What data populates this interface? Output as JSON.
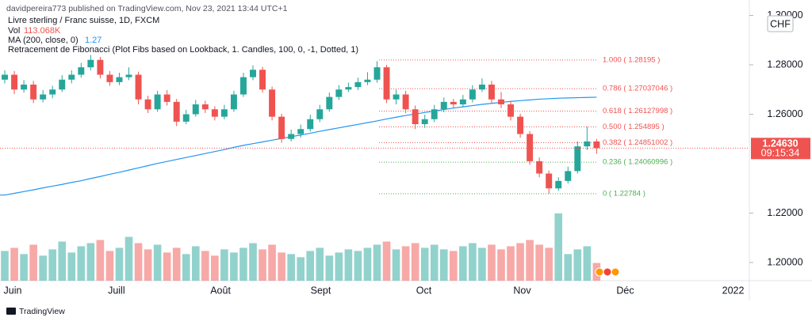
{
  "chart_data": {
    "type": "candlestick",
    "header": "davidpereira773 published on TradingView.com, Nov 23, 2021 13:44 UTC+1",
    "title": "Livre sterling / Franc suisse, 1D, FXCM",
    "currency": "CHF",
    "footer": "TradingView",
    "up_color": "#26a69a",
    "down_color": "#ef5350",
    "xlim": [
      -0.5,
      78
    ],
    "xticks": [
      {
        "value": 0.75,
        "label": "Juin"
      },
      {
        "value": 11.7,
        "label": "Juill"
      },
      {
        "value": 22.6,
        "label": "Août"
      },
      {
        "value": 33.1,
        "label": "Sept"
      },
      {
        "value": 43.9,
        "label": "Oct"
      },
      {
        "value": 54.2,
        "label": "Nov"
      },
      {
        "value": 65,
        "label": "Déc"
      },
      {
        "value": 76.3,
        "label": "2022"
      }
    ],
    "ylim": [
      1.19264,
      1.30624
    ],
    "yticks": [
      {
        "value": 1.3,
        "label": "1.30000"
      },
      {
        "value": 1.28,
        "label": "1.28000"
      },
      {
        "value": 1.26,
        "label": "1.26000"
      },
      {
        "value": 1.22,
        "label": "1.22000"
      },
      {
        "value": 1.2,
        "label": "1.20000"
      }
    ],
    "candles": {
      "open": [
        1.274,
        1.276,
        1.27,
        1.272,
        1.266,
        1.268,
        1.27,
        1.274,
        1.276,
        1.279,
        1.282,
        1.276,
        1.273,
        1.275,
        1.276,
        1.266,
        1.262,
        1.268,
        1.265,
        1.257,
        1.26,
        1.264,
        1.262,
        1.259,
        1.262,
        1.268,
        1.275,
        1.278,
        1.27,
        1.259,
        1.25,
        1.252,
        1.254,
        1.258,
        1.262,
        1.267,
        1.27,
        1.271,
        1.273,
        1.274,
        1.279,
        1.266,
        1.268,
        1.262,
        1.256,
        1.258,
        1.262,
        1.265,
        1.264,
        1.266,
        1.27,
        1.272,
        1.266,
        1.264,
        1.259,
        1.252,
        1.241,
        1.236,
        1.23,
        1.233,
        1.237,
        1.247,
        1.249
      ],
      "high": [
        1.2778,
        1.2775,
        1.2738,
        1.2735,
        1.2698,
        1.2715,
        1.2758,
        1.2778,
        1.2808,
        1.284,
        1.2832,
        1.2775,
        1.2768,
        1.279,
        1.2772,
        1.2675,
        1.2695,
        1.2698,
        1.2662,
        1.2618,
        1.2658,
        1.2655,
        1.2632,
        1.2638,
        1.2695,
        1.2768,
        1.2798,
        1.2792,
        1.2712,
        1.2602,
        1.2538,
        1.2558,
        1.2598,
        1.2638,
        1.2688,
        1.2718,
        1.2728,
        1.2748,
        1.277,
        1.2815,
        1.28,
        1.27,
        1.2695,
        1.2635,
        1.2598,
        1.2638,
        1.2668,
        1.2662,
        1.2678,
        1.2718,
        1.2745,
        1.2735,
        1.269,
        1.2652,
        1.2602,
        1.2532,
        1.2425,
        1.2372,
        1.2345,
        1.2388,
        1.249,
        1.255,
        1.25
      ],
      "low": [
        1.2725,
        1.2682,
        1.2688,
        1.2645,
        1.2648,
        1.2665,
        1.269,
        1.2725,
        1.2748,
        1.2778,
        1.2745,
        1.2715,
        1.2718,
        1.2738,
        1.264,
        1.2605,
        1.261,
        1.2635,
        1.2552,
        1.256,
        1.259,
        1.2605,
        1.2575,
        1.258,
        1.261,
        1.267,
        1.2738,
        1.2688,
        1.2575,
        1.2485,
        1.249,
        1.2505,
        1.253,
        1.2568,
        1.261,
        1.2658,
        1.269,
        1.2698,
        1.2718,
        1.2728,
        1.2645,
        1.264,
        1.2605,
        1.254,
        1.2545,
        1.2568,
        1.2608,
        1.2625,
        1.2628,
        1.2648,
        1.269,
        1.2645,
        1.2625,
        1.2575,
        1.2505,
        1.2395,
        1.2345,
        1.2278,
        1.229,
        1.232,
        1.236,
        1.2455,
        1.244
      ],
      "close": [
        1.276,
        1.27,
        1.272,
        1.266,
        1.268,
        1.27,
        1.274,
        1.276,
        1.279,
        1.282,
        1.276,
        1.273,
        1.275,
        1.276,
        1.266,
        1.262,
        1.268,
        1.265,
        1.257,
        1.26,
        1.264,
        1.262,
        1.259,
        1.262,
        1.268,
        1.275,
        1.278,
        1.27,
        1.259,
        1.25,
        1.252,
        1.254,
        1.258,
        1.262,
        1.267,
        1.27,
        1.271,
        1.273,
        1.274,
        1.279,
        1.266,
        1.268,
        1.262,
        1.256,
        1.258,
        1.262,
        1.265,
        1.264,
        1.266,
        1.27,
        1.272,
        1.266,
        1.264,
        1.259,
        1.252,
        1.241,
        1.236,
        1.23,
        1.233,
        1.237,
        1.247,
        1.249,
        1.2463
      ]
    },
    "last_price_label": "1.24630",
    "countdown": "09:15:34",
    "last_price_color": "#ef5350",
    "volume": {
      "name": "Vol",
      "last_label": "113.068K",
      "lim": [
        0,
        480000
      ],
      "values": [
        190000,
        210000,
        170000,
        230000,
        160000,
        200000,
        250000,
        180000,
        220000,
        240000,
        260000,
        190000,
        210000,
        280000,
        240000,
        200000,
        230000,
        180000,
        210000,
        170000,
        220000,
        190000,
        160000,
        200000,
        180000,
        210000,
        240000,
        200000,
        230000,
        180000,
        170000,
        150000,
        190000,
        210000,
        160000,
        180000,
        200000,
        190000,
        210000,
        230000,
        250000,
        200000,
        220000,
        240000,
        210000,
        230000,
        200000,
        190000,
        220000,
        240000,
        210000,
        230000,
        200000,
        220000,
        240000,
        260000,
        230000,
        210000,
        430000,
        170000,
        200000,
        220000,
        113068
      ]
    },
    "ma": {
      "name": "MA (200, close, 0)",
      "label": "1.27",
      "color": "#2196f3",
      "values": [
        1.2273,
        1.228,
        1.2287,
        1.2294,
        1.2302,
        1.2309,
        1.2316,
        1.2324,
        1.2331,
        1.234,
        1.2348,
        1.2357,
        1.2365,
        1.2374,
        1.2383,
        1.2392,
        1.2401,
        1.2409,
        1.2417,
        1.2425,
        1.2433,
        1.2441,
        1.2449,
        1.2457,
        1.2466,
        1.2474,
        1.2481,
        1.2488,
        1.2495,
        1.2502,
        1.2509,
        1.2516,
        1.2523,
        1.2531,
        1.2538,
        1.2545,
        1.2552,
        1.2559,
        1.2566,
        1.2573,
        1.2581,
        1.2588,
        1.2595,
        1.2601,
        1.2607,
        1.2613,
        1.2619,
        1.2625,
        1.263,
        1.2635,
        1.264,
        1.2644,
        1.2648,
        1.2652,
        1.2655,
        1.2658,
        1.2661,
        1.2663,
        1.2665,
        1.2666,
        1.2667,
        1.2668,
        1.2669
      ]
    },
    "fib": {
      "name": "Retracement de Fibonacci (Plot Fibs based on Lookback, 1. Candles, 100, 0, -1, Dotted, 1)",
      "levels": [
        {
          "label": "1.000 ( 1.28195 )",
          "price": 1.28195,
          "color": "#ef5350"
        },
        {
          "label": "0.786 ( 1.27037046 )",
          "price": 1.27037046,
          "color": "#ef5350"
        },
        {
          "label": "0.618 ( 1.26127998 )",
          "price": 1.26127998,
          "color": "#ef5350"
        },
        {
          "label": "0.500 ( 1.254895 )",
          "price": 1.254895,
          "color": "#ef5350"
        },
        {
          "label": "0.382 ( 1.24851002 )",
          "price": 1.24851002,
          "color": "#ef5350"
        },
        {
          "label": "0.236 ( 1.24060996 )",
          "price": 1.24060996,
          "color": "#4caf50"
        },
        {
          "label": "0 ( 1.22784 )",
          "price": 1.22784,
          "color": "#4caf50"
        }
      ]
    }
  }
}
